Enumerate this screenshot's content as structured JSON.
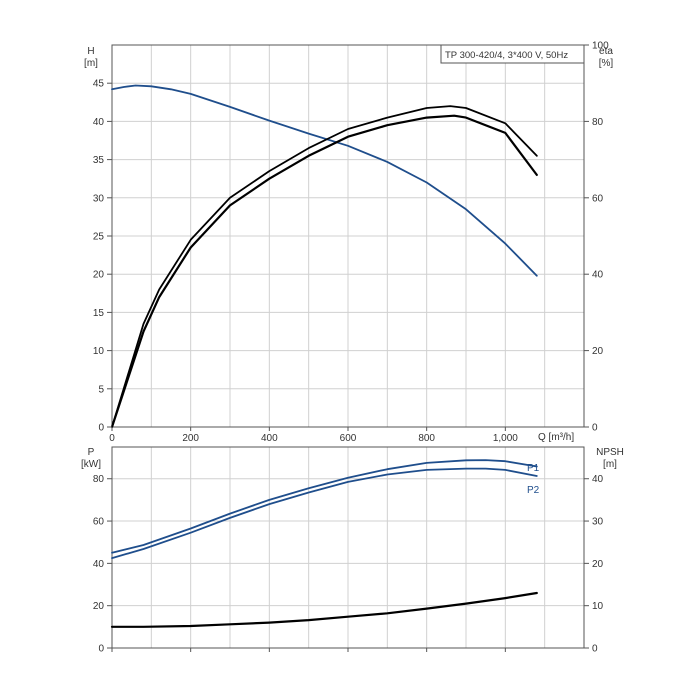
{
  "chart_data": [
    {
      "type": "line",
      "title": "TP 300-420/4, 3*400 V, 50Hz",
      "xlabel": "Q [m³/h]",
      "ylabel": {
        "name": "H",
        "unit": "[m]"
      },
      "y2label": {
        "name": "eta",
        "unit": "[%]"
      },
      "xlim": [
        0,
        1200
      ],
      "ylim": [
        0,
        50
      ],
      "y2lim": [
        0,
        100
      ],
      "xticks": [
        0,
        200,
        400,
        600,
        800,
        1000
      ],
      "xtick_labels": [
        "0",
        "200",
        "400",
        "600",
        "800",
        "1,000"
      ],
      "yticks": [
        0,
        5,
        10,
        15,
        20,
        25,
        30,
        35,
        40,
        45
      ],
      "y2ticks": [
        0,
        20,
        40,
        60,
        80,
        100
      ],
      "grid": true,
      "series": [
        {
          "axis": "left",
          "color": "#1f4e8c",
          "x": [
            0,
            30,
            60,
            100,
            150,
            200,
            300,
            400,
            500,
            600,
            700,
            800,
            900,
            1000,
            1080
          ],
          "y": [
            44.2,
            44.5,
            44.7,
            44.6,
            44.2,
            43.6,
            41.9,
            40.1,
            38.4,
            36.8,
            34.7,
            32.0,
            28.5,
            24.0,
            19.8
          ]
        },
        {
          "axis": "right",
          "color": "#000000",
          "x": [
            0,
            80,
            120,
            200,
            300,
            400,
            500,
            600,
            700,
            800,
            860,
            900,
            1000,
            1080
          ],
          "y": [
            0,
            27,
            36,
            49,
            60,
            67,
            73,
            78,
            81,
            83.5,
            84,
            83.5,
            79.5,
            71
          ]
        },
        {
          "axis": "right",
          "color": "#000000",
          "x": [
            0,
            80,
            120,
            200,
            300,
            400,
            500,
            600,
            700,
            800,
            870,
            900,
            1000,
            1080
          ],
          "y": [
            0,
            25,
            34,
            47,
            58,
            65,
            71,
            76,
            79,
            81,
            81.5,
            81,
            77,
            66
          ]
        }
      ]
    },
    {
      "type": "line",
      "ylabel": {
        "name": "P",
        "unit": "[kW]"
      },
      "y2label": {
        "name": "NPSH",
        "unit": "[m]"
      },
      "xlim": [
        0,
        1200
      ],
      "ylim": [
        0,
        95
      ],
      "y2lim": [
        0,
        47.5
      ],
      "yticks": [
        0,
        20,
        40,
        60,
        80
      ],
      "y2ticks": [
        0,
        10,
        20,
        30,
        40
      ],
      "grid": true,
      "series": [
        {
          "name": "P1",
          "axis": "left",
          "color": "#1f4e8c",
          "x": [
            0,
            80,
            200,
            300,
            400,
            500,
            600,
            700,
            800,
            900,
            950,
            1000,
            1080
          ],
          "y": [
            45,
            48.7,
            56.5,
            63.5,
            70,
            75.5,
            80.5,
            84.5,
            87.5,
            88.7,
            88.8,
            88.3,
            85.8
          ]
        },
        {
          "name": "P2",
          "axis": "left",
          "color": "#1f4e8c",
          "x": [
            0,
            80,
            200,
            300,
            400,
            500,
            600,
            700,
            800,
            900,
            950,
            1000,
            1080
          ],
          "y": [
            42.5,
            46.8,
            54.5,
            61.5,
            68,
            73.5,
            78.5,
            82,
            84.2,
            84.8,
            84.8,
            84.2,
            81.3
          ]
        },
        {
          "axis": "right",
          "color": "#000000",
          "x": [
            0,
            80,
            200,
            300,
            400,
            500,
            600,
            700,
            800,
            900,
            1000,
            1080
          ],
          "y": [
            5,
            5,
            5.2,
            5.6,
            6,
            6.6,
            7.4,
            8.2,
            9.3,
            10.5,
            11.8,
            13
          ]
        }
      ]
    }
  ]
}
